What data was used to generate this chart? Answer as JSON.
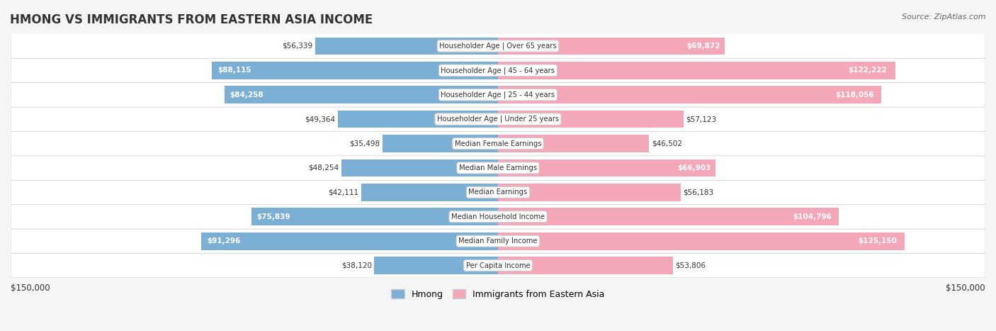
{
  "title": "HMONG VS IMMIGRANTS FROM EASTERN ASIA INCOME",
  "source": "Source: ZipAtlas.com",
  "categories": [
    "Per Capita Income",
    "Median Family Income",
    "Median Household Income",
    "Median Earnings",
    "Median Male Earnings",
    "Median Female Earnings",
    "Householder Age | Under 25 years",
    "Householder Age | 25 - 44 years",
    "Householder Age | 45 - 64 years",
    "Householder Age | Over 65 years"
  ],
  "hmong_values": [
    38120,
    91296,
    75839,
    42111,
    48254,
    35498,
    49364,
    84258,
    88115,
    56339
  ],
  "eastern_asia_values": [
    53806,
    125150,
    104796,
    56183,
    66903,
    46502,
    57123,
    118056,
    122222,
    69872
  ],
  "hmong_color": "#7bafd4",
  "hmong_color_dark": "#5b9ec9",
  "eastern_asia_color": "#f4a7b9",
  "eastern_asia_color_dark": "#e87fa0",
  "max_value": 150000,
  "label_color_light": "#333333",
  "label_color_white": "#ffffff",
  "background_color": "#f5f5f5",
  "row_bg_color": "#e8e8e8",
  "xlabel_left": "$150,000",
  "xlabel_right": "$150,000",
  "legend_hmong": "Hmong",
  "legend_eastern": "Immigrants from Eastern Asia"
}
